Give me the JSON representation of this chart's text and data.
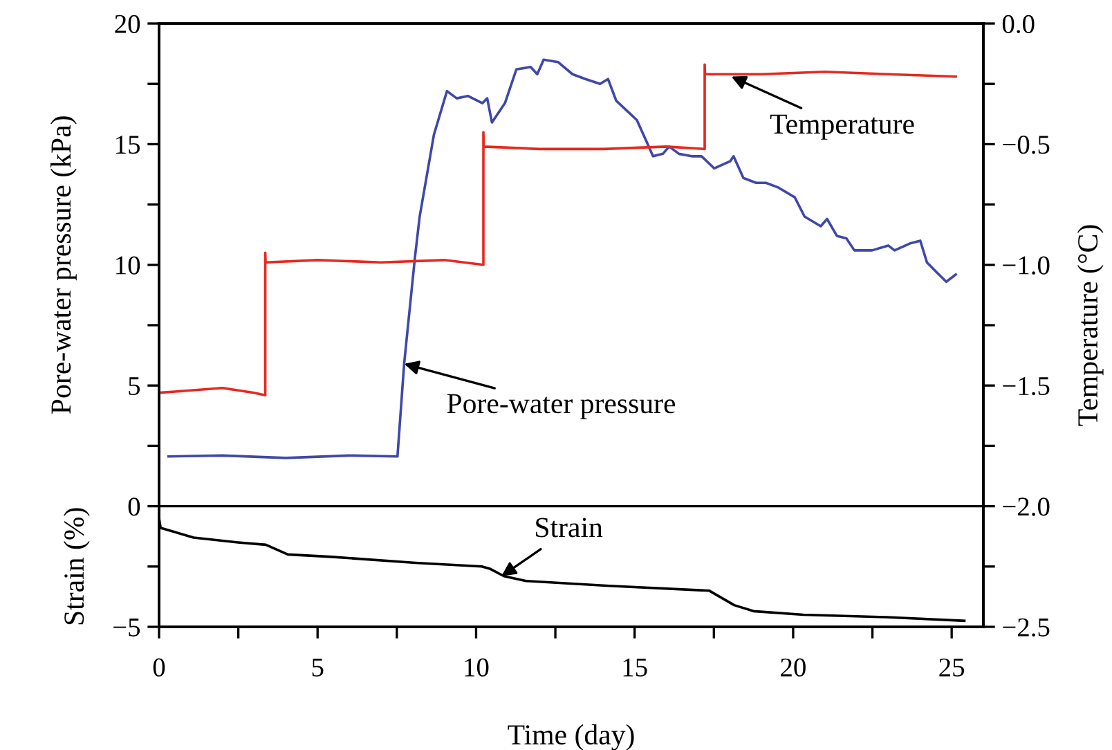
{
  "chart_data": {
    "type": "line",
    "xlabel": "Time (day)",
    "ylabel": "Pore-water pressure (kPa)",
    "y2label": "Temperature (°C)",
    "xlim": [
      0,
      26
    ],
    "xticks": [
      0,
      {
        "value": 2.5,
        "label": null
      },
      5,
      {
        "value": 7.5,
        "label": null
      },
      10,
      {
        "value": 12.5,
        "label": null
      },
      15,
      {
        "value": 17.5,
        "label": null
      },
      20,
      {
        "value": 22.5,
        "label": null
      },
      25
    ],
    "ylim": [
      -5,
      20
    ],
    "yticks": [
      {
        "value": -5,
        "label": "−5"
      },
      {
        "value": -2.5,
        "label": null
      },
      0,
      {
        "value": 2.5,
        "label": null
      },
      5,
      {
        "value": 7.5,
        "label": null
      },
      10,
      {
        "value": 12.5,
        "label": null
      },
      15,
      {
        "value": 17.5,
        "label": null
      },
      20
    ],
    "y2lim": [
      -2.5,
      0
    ],
    "y2ticks": [
      {
        "value": -2.5,
        "label": "−2.5"
      },
      {
        "value": -2.25,
        "label": null
      },
      {
        "value": -2.0,
        "label": "−2.0"
      },
      {
        "value": -1.75,
        "label": null
      },
      {
        "value": -1.5,
        "label": "−1.5"
      },
      {
        "value": -1.25,
        "label": null
      },
      {
        "value": -1.0,
        "label": "−1.0"
      },
      {
        "value": -0.75,
        "label": null
      },
      {
        "value": -0.5,
        "label": "−0.5"
      },
      {
        "value": -0.25,
        "label": null
      },
      {
        "value": 0,
        "label": "0.0"
      }
    ],
    "ref_lines": [
      {
        "axis": "y",
        "value": 0,
        "label": null,
        "color": "#000000"
      }
    ],
    "grid": false,
    "legend": false,
    "marker": "none",
    "line_style": "solid",
    "series": [
      {
        "color": "#3f48a8",
        "x": [
          0.3,
          2,
          4,
          6,
          7.52,
          7.73,
          8.07,
          8.22,
          8.67,
          9.08,
          9.39,
          9.74,
          10.2,
          10.35,
          10.5,
          10.91,
          11.27,
          11.72,
          11.93,
          12.13,
          12.59,
          13.04,
          13.45,
          13.91,
          14.16,
          14.42,
          15.07,
          15.38,
          15.58,
          15.89,
          16.09,
          16.4,
          16.8,
          17.11,
          17.51,
          18.02,
          18.12,
          18.43,
          18.83,
          19.14,
          19.54,
          20.05,
          20.36,
          20.87,
          21.07,
          21.38,
          21.68,
          21.93,
          22.49,
          23.0,
          23.2,
          23.71,
          24.01,
          24.22,
          24.52,
          24.83,
          25.03,
          25.13
        ],
        "values": [
          2.06,
          2.1,
          2.0,
          2.1,
          2.06,
          5.9,
          10.3,
          12.0,
          15.4,
          17.2,
          16.9,
          17.0,
          16.7,
          16.9,
          15.9,
          16.7,
          18.1,
          18.2,
          17.9,
          18.5,
          18.4,
          17.9,
          17.7,
          17.5,
          17.7,
          16.8,
          16.0,
          15.1,
          14.5,
          14.6,
          14.9,
          14.6,
          14.5,
          14.5,
          14.0,
          14.3,
          14.5,
          13.6,
          13.4,
          13.4,
          13.2,
          12.8,
          12.0,
          11.6,
          11.9,
          11.2,
          11.1,
          10.6,
          10.6,
          10.8,
          10.6,
          10.9,
          11.0,
          10.1,
          9.7,
          9.3,
          9.5,
          9.6
        ]
      },
      {
        "color": "#e8281e",
        "axis": "y2",
        "x": [
          0,
          1,
          2,
          3,
          3.35,
          3.35,
          3.36,
          5,
          7,
          9,
          10.23,
          10.23,
          10.24,
          12,
          14,
          16,
          17.21,
          17.21,
          17.22,
          19,
          21,
          23,
          25.13
        ],
        "values": [
          -1.53,
          -1.52,
          -1.51,
          -1.53,
          -1.54,
          -0.95,
          -0.99,
          -0.98,
          -0.99,
          -0.98,
          -1.0,
          -0.45,
          -0.51,
          -0.52,
          -0.52,
          -0.51,
          -0.52,
          -0.17,
          -0.21,
          -0.21,
          -0.2,
          -0.21,
          -0.22
        ]
      },
      {
        "color": "#000000",
        "x": [
          0,
          0.05,
          1.09,
          2.49,
          3.37,
          4.06,
          5.46,
          8.09,
          10.18,
          10.45,
          10.88,
          11.58,
          14.2,
          17.35,
          18.14,
          18.75,
          20.32,
          22.95,
          25.4
        ],
        "values": [
          -0.5,
          -0.9,
          -1.3,
          -1.5,
          -1.6,
          -2.0,
          -2.1,
          -2.35,
          -2.5,
          -2.6,
          -2.9,
          -3.1,
          -3.3,
          -3.5,
          -4.1,
          -4.35,
          -4.5,
          -4.6,
          -4.75
        ]
      }
    ],
    "annotations": [
      {
        "text": "Pore-water pressure",
        "x": 7.73,
        "y": 5.9
      },
      {
        "text": "Temperature",
        "x": 18.05,
        "y": 17.8
      },
      {
        "text": "Strain",
        "x": 10.8,
        "y": -2.9
      },
      "Strain (%)"
    ]
  }
}
